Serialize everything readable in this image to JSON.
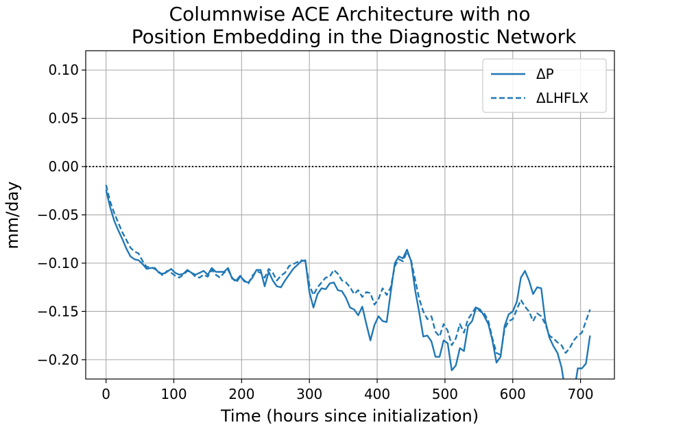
{
  "chart_data": {
    "type": "line",
    "title_lines": [
      "Columnwise ACE Architecture with no",
      "Position Embedding in the Diagnostic Network"
    ],
    "xlabel": "Time (hours since initialization)",
    "ylabel": "mm/day",
    "xlim": [
      -30,
      750
    ],
    "ylim": [
      -0.22,
      0.12
    ],
    "xticks": [
      0,
      100,
      200,
      300,
      400,
      500,
      600,
      700
    ],
    "yticks": [
      0.1,
      0.05,
      0.0,
      -0.05,
      -0.1,
      -0.15,
      -0.2
    ],
    "ytick_labels": [
      "0.10",
      "0.05",
      "0.00",
      "−0.05",
      "−0.10",
      "−0.15",
      "−0.20"
    ],
    "grid": true,
    "legend_position": "top-right",
    "reference_line": {
      "y": 0.0,
      "style": "dotted",
      "color": "#000000"
    },
    "series": [
      {
        "name": "ΔP",
        "style": "solid",
        "color": "#1f77b4",
        "x": [
          0,
          6,
          12,
          18,
          24,
          30,
          36,
          42,
          48,
          54,
          60,
          66,
          72,
          78,
          84,
          90,
          96,
          102,
          108,
          114,
          120,
          126,
          132,
          138,
          144,
          150,
          156,
          162,
          168,
          174,
          180,
          186,
          192,
          198,
          204,
          210,
          216,
          222,
          228,
          234,
          240,
          246,
          252,
          258,
          264,
          270,
          276,
          282,
          288,
          294,
          300,
          306,
          312,
          318,
          324,
          330,
          336,
          342,
          348,
          354,
          360,
          366,
          372,
          378,
          384,
          390,
          396,
          402,
          408,
          414,
          420,
          426,
          432,
          438,
          444,
          450,
          456,
          462,
          468,
          474,
          480,
          486,
          492,
          498,
          504,
          510,
          516,
          522,
          528,
          534,
          540,
          546,
          552,
          558,
          564,
          570,
          576,
          582,
          588,
          594,
          600,
          606,
          612,
          618,
          624,
          630,
          636,
          642,
          648,
          654,
          660,
          666,
          672,
          678,
          684,
          690,
          696,
          702,
          708,
          714
        ],
        "y": [
          -0.024,
          -0.042,
          -0.056,
          -0.066,
          -0.075,
          -0.085,
          -0.093,
          -0.096,
          -0.097,
          -0.101,
          -0.106,
          -0.105,
          -0.105,
          -0.11,
          -0.111,
          -0.109,
          -0.106,
          -0.11,
          -0.112,
          -0.111,
          -0.107,
          -0.11,
          -0.112,
          -0.11,
          -0.108,
          -0.112,
          -0.105,
          -0.109,
          -0.109,
          -0.109,
          -0.105,
          -0.116,
          -0.118,
          -0.113,
          -0.119,
          -0.12,
          -0.115,
          -0.107,
          -0.107,
          -0.124,
          -0.109,
          -0.118,
          -0.124,
          -0.125,
          -0.118,
          -0.112,
          -0.106,
          -0.102,
          -0.098,
          -0.097,
          -0.13,
          -0.146,
          -0.132,
          -0.126,
          -0.127,
          -0.121,
          -0.12,
          -0.128,
          -0.129,
          -0.136,
          -0.146,
          -0.148,
          -0.154,
          -0.145,
          -0.163,
          -0.18,
          -0.164,
          -0.155,
          -0.16,
          -0.161,
          -0.13,
          -0.1,
          -0.093,
          -0.095,
          -0.086,
          -0.098,
          -0.128,
          -0.151,
          -0.176,
          -0.175,
          -0.181,
          -0.197,
          -0.197,
          -0.18,
          -0.183,
          -0.211,
          -0.206,
          -0.188,
          -0.191,
          -0.165,
          -0.16,
          -0.146,
          -0.148,
          -0.155,
          -0.163,
          -0.18,
          -0.203,
          -0.197,
          -0.165,
          -0.153,
          -0.15,
          -0.14,
          -0.115,
          -0.108,
          -0.118,
          -0.132,
          -0.125,
          -0.126,
          -0.16,
          -0.177,
          -0.186,
          -0.193,
          -0.208,
          -0.235,
          -0.23,
          -0.235,
          -0.209,
          -0.209,
          -0.204,
          -0.175
        ]
      },
      {
        "name": "ΔLHFLX",
        "style": "dashed",
        "color": "#1f77b4",
        "x": [
          0,
          6,
          12,
          18,
          24,
          30,
          36,
          42,
          48,
          54,
          60,
          66,
          72,
          78,
          84,
          90,
          96,
          102,
          108,
          114,
          120,
          126,
          132,
          138,
          144,
          150,
          156,
          162,
          168,
          174,
          180,
          186,
          192,
          198,
          204,
          210,
          216,
          222,
          228,
          234,
          240,
          246,
          252,
          258,
          264,
          270,
          276,
          282,
          288,
          294,
          300,
          306,
          312,
          318,
          324,
          330,
          336,
          342,
          348,
          354,
          360,
          366,
          372,
          378,
          384,
          390,
          396,
          402,
          408,
          414,
          420,
          426,
          432,
          438,
          444,
          450,
          456,
          462,
          468,
          474,
          480,
          486,
          492,
          498,
          504,
          510,
          516,
          522,
          528,
          534,
          540,
          546,
          552,
          558,
          564,
          570,
          576,
          582,
          588,
          594,
          600,
          606,
          612,
          618,
          624,
          630,
          636,
          642,
          648,
          654,
          660,
          666,
          672,
          678,
          684,
          690,
          696,
          702,
          708,
          714
        ],
        "y": [
          -0.019,
          -0.036,
          -0.048,
          -0.058,
          -0.068,
          -0.076,
          -0.084,
          -0.088,
          -0.09,
          -0.098,
          -0.104,
          -0.104,
          -0.106,
          -0.109,
          -0.113,
          -0.108,
          -0.11,
          -0.113,
          -0.115,
          -0.112,
          -0.108,
          -0.11,
          -0.114,
          -0.115,
          -0.112,
          -0.114,
          -0.107,
          -0.112,
          -0.115,
          -0.11,
          -0.107,
          -0.115,
          -0.12,
          -0.114,
          -0.118,
          -0.121,
          -0.113,
          -0.108,
          -0.11,
          -0.115,
          -0.106,
          -0.11,
          -0.118,
          -0.113,
          -0.11,
          -0.103,
          -0.101,
          -0.099,
          -0.097,
          -0.098,
          -0.123,
          -0.133,
          -0.125,
          -0.12,
          -0.115,
          -0.114,
          -0.107,
          -0.111,
          -0.118,
          -0.12,
          -0.125,
          -0.132,
          -0.128,
          -0.135,
          -0.13,
          -0.131,
          -0.143,
          -0.137,
          -0.126,
          -0.133,
          -0.125,
          -0.103,
          -0.096,
          -0.098,
          -0.088,
          -0.097,
          -0.117,
          -0.137,
          -0.15,
          -0.158,
          -0.155,
          -0.171,
          -0.176,
          -0.163,
          -0.17,
          -0.185,
          -0.178,
          -0.163,
          -0.172,
          -0.158,
          -0.152,
          -0.145,
          -0.15,
          -0.152,
          -0.16,
          -0.178,
          -0.193,
          -0.195,
          -0.168,
          -0.16,
          -0.158,
          -0.148,
          -0.138,
          -0.145,
          -0.15,
          -0.16,
          -0.152,
          -0.155,
          -0.163,
          -0.175,
          -0.178,
          -0.182,
          -0.185,
          -0.193,
          -0.188,
          -0.18,
          -0.175,
          -0.172,
          -0.16,
          -0.148
        ]
      }
    ]
  }
}
